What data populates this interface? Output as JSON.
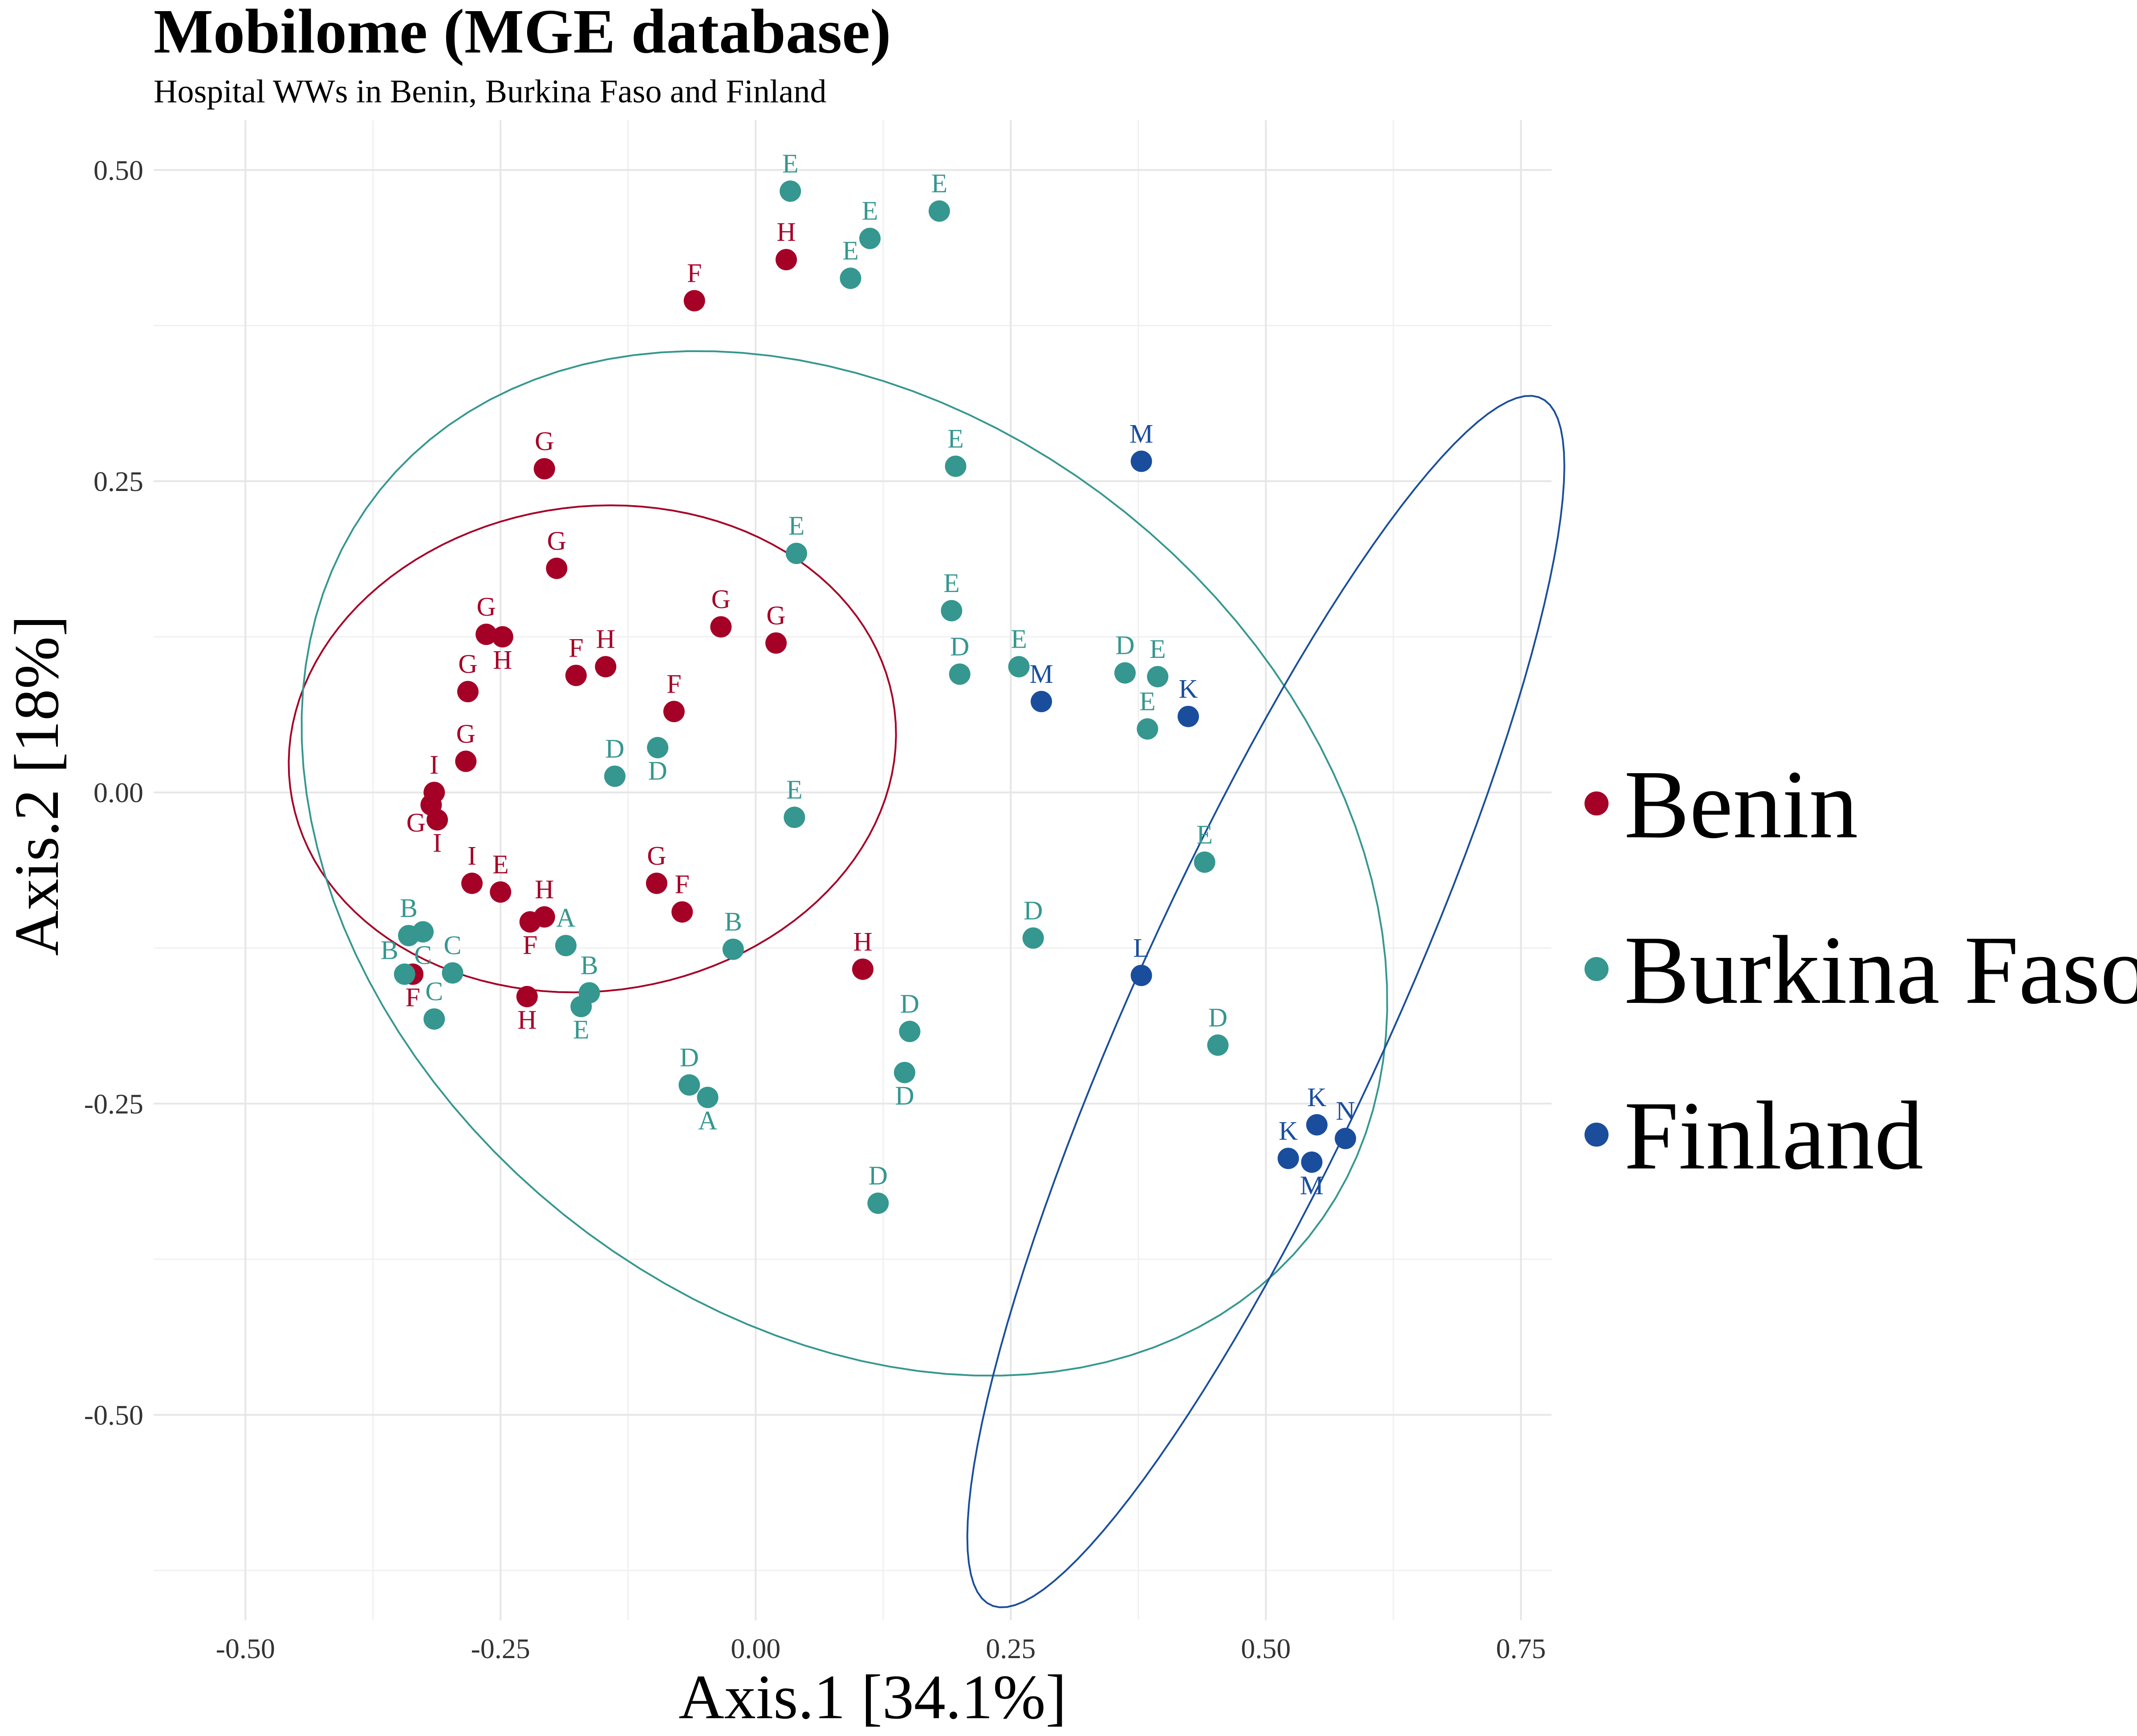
{
  "chart_data": {
    "type": "scatter",
    "title": "Mobilome (MGE database)",
    "subtitle": "Hospital WWs in Benin, Burkina Faso and Finland",
    "xlabel": "Axis.1   [34.1%]",
    "ylabel": "Axis.2   [18%]",
    "xlim": [
      -0.59,
      0.78
    ],
    "ylim": [
      -0.665,
      0.54
    ],
    "x_ticks": [
      -0.5,
      -0.25,
      0.0,
      0.25,
      0.5,
      0.75
    ],
    "x_tick_labels": [
      "-0.50",
      "-0.25",
      "0.00",
      "0.25",
      "0.50",
      "0.75"
    ],
    "y_ticks": [
      0.5,
      0.25,
      0.0,
      -0.25,
      -0.5
    ],
    "y_tick_labels": [
      "0.50",
      "0.25",
      "0.00",
      "-0.25",
      "-0.50"
    ],
    "grid": true,
    "legend_position": "right",
    "legend": [
      "Benin",
      "Burkina Faso",
      "Finland"
    ],
    "colors": {
      "Benin": "#A50026",
      "Burkina Faso": "#35978F",
      "Finland": "#1A4E9C"
    },
    "series": [
      {
        "name": "Benin",
        "ellipse": {
          "cx": -0.16,
          "cy": 0.035,
          "rx": 0.195,
          "ry": 0.298,
          "angle_deg": 94
        },
        "points": [
          {
            "x": -0.06,
            "y": 0.395,
            "label": "F"
          },
          {
            "x": 0.03,
            "y": 0.428,
            "label": "H"
          },
          {
            "x": -0.207,
            "y": 0.26,
            "label": "G"
          },
          {
            "x": -0.195,
            "y": 0.18,
            "label": "G"
          },
          {
            "x": -0.264,
            "y": 0.127,
            "label": "G"
          },
          {
            "x": -0.248,
            "y": 0.125,
            "label": "H"
          },
          {
            "x": -0.176,
            "y": 0.094,
            "label": "F"
          },
          {
            "x": -0.147,
            "y": 0.101,
            "label": "H"
          },
          {
            "x": -0.282,
            "y": 0.081,
            "label": "G"
          },
          {
            "x": -0.08,
            "y": 0.065,
            "label": "F"
          },
          {
            "x": -0.034,
            "y": 0.133,
            "label": "G"
          },
          {
            "x": 0.02,
            "y": 0.12,
            "label": "G"
          },
          {
            "x": -0.284,
            "y": 0.025,
            "label": "G"
          },
          {
            "x": -0.315,
            "y": 0.0,
            "label": "I"
          },
          {
            "x": -0.318,
            "y": -0.01,
            "label": "G"
          },
          {
            "x": -0.312,
            "y": -0.022,
            "label": "I"
          },
          {
            "x": -0.278,
            "y": -0.073,
            "label": "I"
          },
          {
            "x": -0.25,
            "y": -0.08,
            "label": "E"
          },
          {
            "x": -0.207,
            "y": -0.1,
            "label": "H"
          },
          {
            "x": -0.221,
            "y": -0.104,
            "label": "F"
          },
          {
            "x": -0.097,
            "y": -0.073,
            "label": "G"
          },
          {
            "x": -0.072,
            "y": -0.096,
            "label": "F"
          },
          {
            "x": -0.336,
            "y": -0.146,
            "label": "F"
          },
          {
            "x": -0.224,
            "y": -0.164,
            "label": "H"
          },
          {
            "x": 0.105,
            "y": -0.142,
            "label": "H"
          }
        ]
      },
      {
        "name": "Burkina Faso",
        "ellipse": {
          "cx": 0.087,
          "cy": -0.057,
          "rx": 0.555,
          "ry": 0.38,
          "angle_deg": -23
        },
        "points": [
          {
            "x": 0.034,
            "y": 0.483,
            "label": "E"
          },
          {
            "x": 0.18,
            "y": 0.467,
            "label": "E"
          },
          {
            "x": 0.112,
            "y": 0.445,
            "label": "E"
          },
          {
            "x": 0.093,
            "y": 0.413,
            "label": "E"
          },
          {
            "x": 0.196,
            "y": 0.262,
            "label": "E"
          },
          {
            "x": 0.04,
            "y": 0.192,
            "label": "E"
          },
          {
            "x": 0.192,
            "y": 0.146,
            "label": "E"
          },
          {
            "x": 0.2,
            "y": 0.095,
            "label": "D"
          },
          {
            "x": 0.258,
            "y": 0.101,
            "label": "E"
          },
          {
            "x": 0.362,
            "y": 0.096,
            "label": "D"
          },
          {
            "x": 0.394,
            "y": 0.093,
            "label": "E"
          },
          {
            "x": 0.384,
            "y": 0.051,
            "label": "E"
          },
          {
            "x": -0.096,
            "y": 0.036,
            "label": "D"
          },
          {
            "x": -0.138,
            "y": 0.013,
            "label": "D"
          },
          {
            "x": 0.038,
            "y": -0.02,
            "label": "E"
          },
          {
            "x": 0.44,
            "y": -0.056,
            "label": "E"
          },
          {
            "x": 0.272,
            "y": -0.117,
            "label": "D"
          },
          {
            "x": -0.022,
            "y": -0.126,
            "label": "B"
          },
          {
            "x": -0.186,
            "y": -0.123,
            "label": "A"
          },
          {
            "x": -0.34,
            "y": -0.115,
            "label": "B"
          },
          {
            "x": -0.326,
            "y": -0.112,
            "label": "C"
          },
          {
            "x": -0.344,
            "y": -0.146,
            "label": "B"
          },
          {
            "x": -0.297,
            "y": -0.145,
            "label": "C"
          },
          {
            "x": -0.315,
            "y": -0.182,
            "label": "C"
          },
          {
            "x": -0.163,
            "y": -0.161,
            "label": "B"
          },
          {
            "x": -0.171,
            "y": -0.172,
            "label": "E"
          },
          {
            "x": 0.151,
            "y": -0.192,
            "label": "D"
          },
          {
            "x": 0.146,
            "y": -0.225,
            "label": "D"
          },
          {
            "x": -0.065,
            "y": -0.235,
            "label": "D"
          },
          {
            "x": -0.047,
            "y": -0.245,
            "label": "A"
          },
          {
            "x": 0.453,
            "y": -0.203,
            "label": "D"
          },
          {
            "x": 0.12,
            "y": -0.33,
            "label": "D"
          }
        ]
      },
      {
        "name": "Finland",
        "ellipse": {
          "cx": 0.5,
          "cy": -0.168,
          "rx": 0.555,
          "ry": 0.12,
          "angle_deg": 60.5
        },
        "points": [
          {
            "x": 0.378,
            "y": 0.266,
            "label": "M"
          },
          {
            "x": 0.28,
            "y": 0.073,
            "label": "M"
          },
          {
            "x": 0.424,
            "y": 0.061,
            "label": "K"
          },
          {
            "x": 0.378,
            "y": -0.147,
            "label": "L"
          },
          {
            "x": 0.55,
            "y": -0.267,
            "label": "K"
          },
          {
            "x": 0.578,
            "y": -0.278,
            "label": "N"
          },
          {
            "x": 0.522,
            "y": -0.294,
            "label": "K"
          },
          {
            "x": 0.545,
            "y": -0.297,
            "label": "M"
          }
        ]
      }
    ]
  }
}
